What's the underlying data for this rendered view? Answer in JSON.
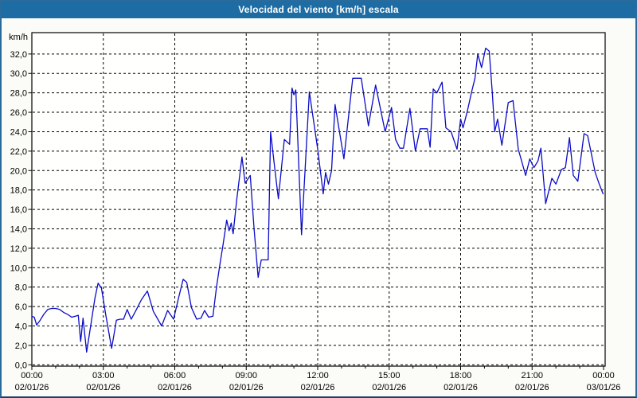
{
  "window": {
    "title": "Velocidad del viento [km/h] escala"
  },
  "colors": {
    "titlebar_bg": "#1d6ca3",
    "title_text": "#ffffff",
    "outer_border": "#2a6b9b",
    "page_bg": "#fbfcf7",
    "plot_bg": "#fffffe",
    "line": "#0b0bc8",
    "grid": "#000000",
    "axis": "#000000",
    "label": "#000000"
  },
  "chart_data": {
    "type": "line",
    "title": "Velocidad del viento [km/h] escala",
    "unit_label": "km/h",
    "grid": "dashed",
    "legend_position": "none",
    "y_axis": {
      "min": 0,
      "max": 34.2,
      "tick_step": 2,
      "tick_values": [
        0,
        2,
        4,
        6,
        8,
        10,
        12,
        14,
        16,
        18,
        20,
        22,
        24,
        26,
        28,
        30,
        32
      ],
      "tick_labels": [
        "0,0",
        "2,0",
        "4,0",
        "6,0",
        "8,0",
        "10,0",
        "12,0",
        "14,0",
        "16,0",
        "18,0",
        "20,0",
        "22,0",
        "24,0",
        "26,0",
        "28,0",
        "30,0",
        "32,0"
      ]
    },
    "x_axis": {
      "min_hours": 0,
      "max_hours": 24,
      "minor_tick_every_hours": 1,
      "major_tick_hours": [
        0,
        3,
        6,
        9,
        12,
        15,
        18,
        21,
        24
      ],
      "tick_times": [
        "00:00",
        "03:00",
        "06:00",
        "09:00",
        "12:00",
        "15:00",
        "18:00",
        "21:00",
        "00:00"
      ],
      "tick_dates": [
        "02/01/26",
        "02/01/26",
        "02/01/26",
        "02/01/26",
        "02/01/26",
        "02/01/26",
        "02/01/26",
        "02/01/26",
        "03/01/26"
      ]
    },
    "series": [
      {
        "name": "Velocidad del viento",
        "unit": "km/h",
        "points": [
          [
            0.0,
            5.0
          ],
          [
            0.1,
            4.9
          ],
          [
            0.2,
            4.1
          ],
          [
            0.35,
            4.6
          ],
          [
            0.5,
            5.2
          ],
          [
            0.67,
            5.7
          ],
          [
            0.83,
            5.8
          ],
          [
            1.0,
            5.8
          ],
          [
            1.17,
            5.7
          ],
          [
            1.33,
            5.4
          ],
          [
            1.5,
            5.2
          ],
          [
            1.67,
            4.9
          ],
          [
            1.83,
            5.0
          ],
          [
            1.95,
            5.1
          ],
          [
            2.05,
            2.4
          ],
          [
            2.15,
            4.8
          ],
          [
            2.3,
            1.3
          ],
          [
            2.5,
            4.5
          ],
          [
            2.65,
            6.9
          ],
          [
            2.78,
            8.4
          ],
          [
            2.92,
            7.9
          ],
          [
            3.1,
            5.2
          ],
          [
            3.35,
            1.7
          ],
          [
            3.55,
            4.6
          ],
          [
            3.7,
            4.7
          ],
          [
            3.85,
            4.7
          ],
          [
            4.0,
            5.7
          ],
          [
            4.17,
            4.7
          ],
          [
            4.35,
            5.5
          ],
          [
            4.6,
            6.7
          ],
          [
            4.85,
            7.6
          ],
          [
            5.1,
            5.5
          ],
          [
            5.45,
            4.0
          ],
          [
            5.7,
            5.6
          ],
          [
            5.95,
            4.7
          ],
          [
            6.15,
            6.8
          ],
          [
            6.35,
            8.8
          ],
          [
            6.5,
            8.5
          ],
          [
            6.7,
            5.9
          ],
          [
            6.92,
            4.7
          ],
          [
            7.1,
            4.8
          ],
          [
            7.25,
            5.6
          ],
          [
            7.42,
            4.9
          ],
          [
            7.6,
            5.0
          ],
          [
            7.75,
            8.0
          ],
          [
            7.9,
            10.4
          ],
          [
            8.03,
            12.4
          ],
          [
            8.18,
            14.9
          ],
          [
            8.28,
            13.8
          ],
          [
            8.37,
            14.6
          ],
          [
            8.45,
            13.5
          ],
          [
            8.6,
            17.0
          ],
          [
            8.82,
            21.4
          ],
          [
            8.95,
            18.7
          ],
          [
            9.17,
            19.5
          ],
          [
            9.33,
            14.0
          ],
          [
            9.5,
            9.0
          ],
          [
            9.63,
            10.8
          ],
          [
            9.92,
            10.8
          ],
          [
            10.02,
            24.0
          ],
          [
            10.2,
            20.2
          ],
          [
            10.35,
            17.1
          ],
          [
            10.6,
            23.2
          ],
          [
            10.82,
            22.7
          ],
          [
            10.92,
            28.5
          ],
          [
            11.0,
            27.8
          ],
          [
            11.08,
            28.3
          ],
          [
            11.32,
            13.4
          ],
          [
            11.65,
            28.1
          ],
          [
            12.0,
            22.2
          ],
          [
            12.23,
            17.6
          ],
          [
            12.33,
            19.8
          ],
          [
            12.45,
            18.6
          ],
          [
            12.58,
            20.0
          ],
          [
            12.73,
            26.8
          ],
          [
            13.1,
            21.2
          ],
          [
            13.47,
            29.5
          ],
          [
            13.83,
            29.5
          ],
          [
            14.13,
            24.6
          ],
          [
            14.43,
            28.8
          ],
          [
            14.83,
            24.0
          ],
          [
            15.1,
            26.5
          ],
          [
            15.27,
            23.2
          ],
          [
            15.45,
            22.3
          ],
          [
            15.6,
            22.3
          ],
          [
            15.87,
            26.4
          ],
          [
            16.1,
            22.0
          ],
          [
            16.3,
            24.3
          ],
          [
            16.6,
            24.3
          ],
          [
            16.72,
            22.4
          ],
          [
            16.85,
            28.4
          ],
          [
            17.0,
            28.0
          ],
          [
            17.22,
            29.1
          ],
          [
            17.38,
            24.4
          ],
          [
            17.6,
            24.0
          ],
          [
            17.85,
            22.2
          ],
          [
            18.0,
            25.3
          ],
          [
            18.1,
            24.4
          ],
          [
            18.28,
            26.1
          ],
          [
            18.45,
            28.0
          ],
          [
            18.6,
            29.5
          ],
          [
            18.72,
            32.0
          ],
          [
            18.88,
            30.6
          ],
          [
            19.05,
            32.6
          ],
          [
            19.2,
            32.3
          ],
          [
            19.33,
            28.0
          ],
          [
            19.43,
            24.0
          ],
          [
            19.55,
            25.3
          ],
          [
            19.73,
            22.6
          ],
          [
            20.0,
            27.0
          ],
          [
            20.2,
            27.2
          ],
          [
            20.42,
            22.2
          ],
          [
            20.73,
            19.5
          ],
          [
            20.9,
            21.2
          ],
          [
            21.08,
            20.3
          ],
          [
            21.25,
            21.0
          ],
          [
            21.37,
            22.3
          ],
          [
            21.57,
            16.6
          ],
          [
            21.83,
            19.2
          ],
          [
            22.0,
            18.6
          ],
          [
            22.23,
            20.1
          ],
          [
            22.4,
            20.3
          ],
          [
            22.57,
            23.4
          ],
          [
            22.73,
            19.5
          ],
          [
            22.92,
            18.9
          ],
          [
            23.18,
            23.8
          ],
          [
            23.33,
            23.6
          ],
          [
            23.65,
            19.8
          ],
          [
            23.82,
            18.6
          ],
          [
            23.98,
            17.6
          ]
        ]
      }
    ]
  }
}
